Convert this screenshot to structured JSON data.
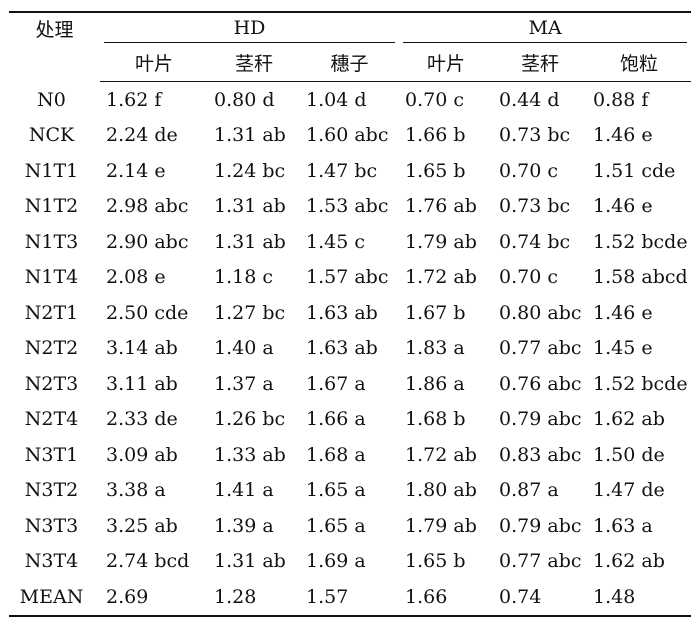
{
  "table": {
    "corner_label": "处理",
    "groups": [
      "HD",
      "MA"
    ],
    "subheaders": [
      "叶片",
      "茎秆",
      "穗子",
      "叶片",
      "茎秆",
      "饱粒"
    ],
    "rows": [
      {
        "treatment": "N0",
        "values": [
          "1.62 f",
          "0.80 d",
          "1.04 d",
          "0.70 c",
          "0.44 d",
          "0.88 f"
        ]
      },
      {
        "treatment": "NCK",
        "values": [
          "2.24 de",
          "1.31 ab",
          "1.60 abc",
          "1.66 b",
          "0.73 bc",
          "1.46 e"
        ]
      },
      {
        "treatment": "N1T1",
        "values": [
          "2.14 e",
          "1.24 bc",
          "1.47 bc",
          "1.65 b",
          "0.70 c",
          "1.51 cde"
        ]
      },
      {
        "treatment": "N1T2",
        "values": [
          "2.98 abc",
          "1.31 ab",
          "1.53 abc",
          "1.76 ab",
          "0.73 bc",
          "1.46 e"
        ]
      },
      {
        "treatment": "N1T3",
        "values": [
          "2.90 abc",
          "1.31 ab",
          "1.45 c",
          "1.79 ab",
          "0.74 bc",
          "1.52 bcde"
        ]
      },
      {
        "treatment": "N1T4",
        "values": [
          "2.08 e",
          "1.18 c",
          "1.57 abc",
          "1.72 ab",
          "0.70 c",
          "1.58 abcd"
        ]
      },
      {
        "treatment": "N2T1",
        "values": [
          "2.50 cde",
          "1.27 bc",
          "1.63 ab",
          "1.67 b",
          "0.80 abc",
          "1.46 e"
        ]
      },
      {
        "treatment": "N2T2",
        "values": [
          "3.14 ab",
          "1.40 a",
          "1.63 ab",
          "1.83 a",
          "0.77 abc",
          "1.45 e"
        ]
      },
      {
        "treatment": "N2T3",
        "values": [
          "3.11 ab",
          "1.37 a",
          "1.67 a",
          "1.86 a",
          "0.76 abc",
          "1.52 bcde"
        ]
      },
      {
        "treatment": "N2T4",
        "values": [
          "2.33 de",
          "1.26 bc",
          "1.66 a",
          "1.68 b",
          "0.79 abc",
          "1.62 ab"
        ]
      },
      {
        "treatment": "N3T1",
        "values": [
          "3.09 ab",
          "1.33 ab",
          "1.68 a",
          "1.72 ab",
          "0.83 abc",
          "1.50 de"
        ]
      },
      {
        "treatment": "N3T2",
        "values": [
          "3.38 a",
          "1.41 a",
          "1.65 a",
          "1.80 ab",
          "0.87 a",
          "1.47 de"
        ]
      },
      {
        "treatment": "N3T3",
        "values": [
          "3.25 ab",
          "1.39 a",
          "1.65 a",
          "1.79 ab",
          "0.79 abc",
          "1.63 a"
        ]
      },
      {
        "treatment": "N3T4",
        "values": [
          "2.74 bcd",
          "1.31 ab",
          "1.69 a",
          "1.65 b",
          "0.77 abc",
          "1.62 ab"
        ]
      },
      {
        "treatment": "MEAN",
        "values": [
          "2.69",
          "1.28",
          "1.57",
          "1.66",
          "0.74",
          "1.48"
        ]
      }
    ]
  }
}
